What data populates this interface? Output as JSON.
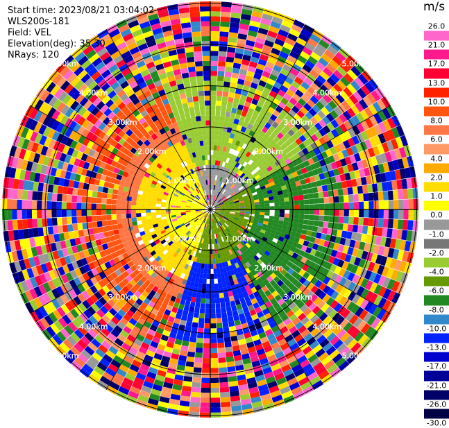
{
  "info": {
    "start_time": "Start time: 2023/08/21 03:04:02",
    "station": "WLS200s-181",
    "field": "Field: VEL",
    "elevation": "Elevation(deg): 35.30",
    "nrays": "NRays: 120"
  },
  "colorbar": {
    "unit": "m/s",
    "ticks": [
      "26.0",
      "21.0",
      "17.0",
      "13.0",
      "10.0",
      "8.0",
      "6.0",
      "4.0",
      "2.0",
      "1.0",
      "0.0",
      "-1.0",
      "-2.0",
      "-4.0",
      "-6.0",
      "-8.0",
      "-10.0",
      "-13.0",
      "-17.0",
      "-21.0",
      "-26.0",
      "-30.0"
    ],
    "colors": [
      "#ff66cc",
      "#ff1a8c",
      "#ff0033",
      "#ff2200",
      "#ff5511",
      "#ff7744",
      "#ff9966",
      "#ffaa00",
      "#ffdd00",
      "#ffff00",
      "#999999",
      "#777777",
      "#99cc33",
      "#669900",
      "#228822",
      "#3388cc",
      "#0022ff",
      "#0000cc",
      "#000099",
      "#000066",
      "#000044"
    ]
  },
  "range_rings": {
    "labels": [
      "1.00km",
      "2.00km",
      "3.00km",
      "4.00km",
      "5.00km"
    ]
  }
}
